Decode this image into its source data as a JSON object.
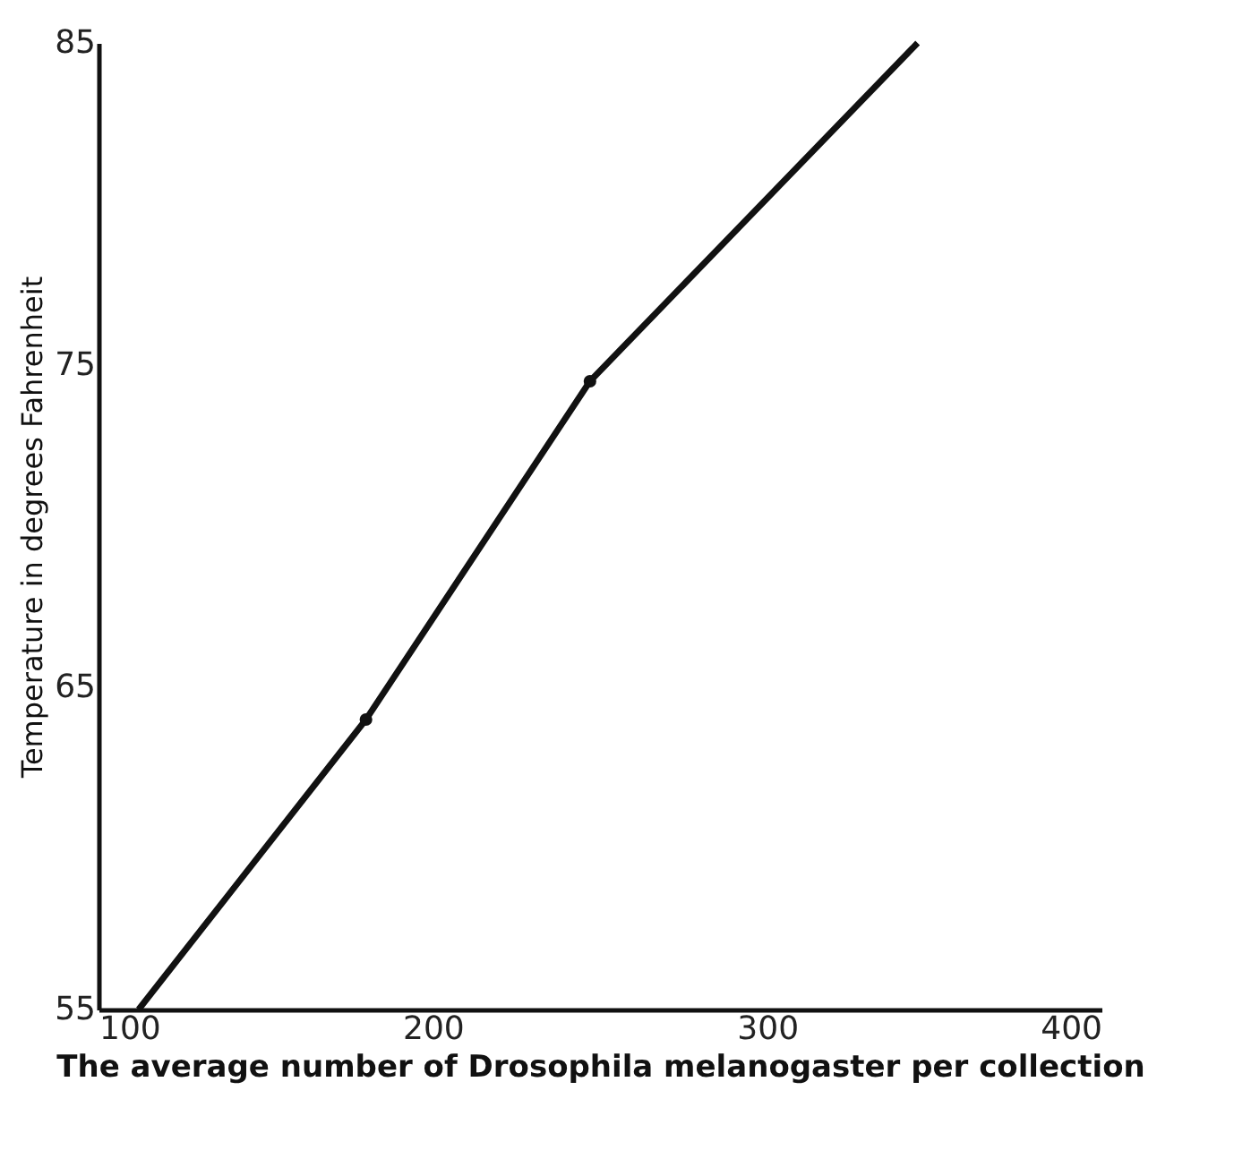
{
  "chart_data": {
    "type": "line",
    "xlabel": "The average number of Drosophila melanogaster per collection",
    "ylabel": "Temperature in degrees Fahrenheit",
    "xlim": [
      100,
      400
    ],
    "xticks": [
      100,
      200,
      300,
      400
    ],
    "ylim": [
      55,
      85
    ],
    "yticks": [
      55,
      65,
      75,
      85
    ],
    "grid": false,
    "series": [
      {
        "color": "#111111",
        "x": [
          112,
          180,
          247,
          345
        ],
        "values": [
          55,
          64,
          74.5,
          85
        ]
      },
      {
        "type": "scatter",
        "color": "#111111",
        "x": [
          180,
          247
        ],
        "values": [
          64,
          74.5
        ]
      }
    ]
  }
}
